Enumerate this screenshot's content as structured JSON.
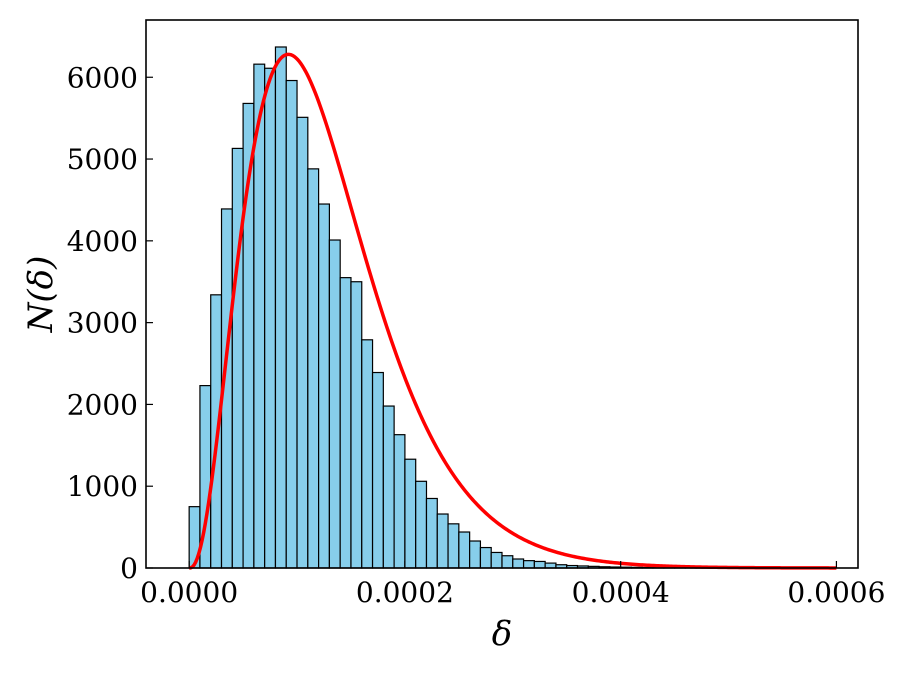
{
  "chart_data": {
    "type": "histogram",
    "xlabel": "δ",
    "ylabel": "N(δ)",
    "xlim": [
      -4e-05,
      0.00062
    ],
    "ylim": [
      0,
      6700
    ],
    "xticks": [
      0.0,
      0.0002,
      0.0004,
      0.0006
    ],
    "xtick_labels": [
      "0.0000",
      "0.0002",
      "0.0004",
      "0.0006"
    ],
    "yticks": [
      0,
      1000,
      2000,
      3000,
      4000,
      5000,
      6000
    ],
    "ytick_labels": [
      "0",
      "1000",
      "2000",
      "3000",
      "4000",
      "5000",
      "6000"
    ],
    "bin_start": 0.0,
    "bin_width": 1e-05,
    "counts": [
      750,
      2230,
      3340,
      4390,
      5130,
      5680,
      6160,
      6110,
      6370,
      5960,
      5510,
      4880,
      4450,
      4010,
      3550,
      3500,
      2790,
      2390,
      1980,
      1630,
      1330,
      1060,
      850,
      660,
      540,
      440,
      330,
      250,
      190,
      150,
      110,
      90,
      80,
      60,
      40,
      30,
      25,
      20,
      15,
      12,
      10,
      8,
      6,
      5,
      4,
      3,
      2,
      2,
      1,
      1,
      1,
      0,
      0,
      0,
      0,
      0,
      0,
      0,
      0,
      0
    ],
    "fit_curve": {
      "color": "#ff0000",
      "shape": 3.5,
      "scale": 3.68e-05,
      "peak_value": 6280,
      "x_range": [
        0.0,
        0.0006
      ]
    },
    "bar_color": "#87ceeb",
    "grid": false,
    "legend": "none"
  }
}
